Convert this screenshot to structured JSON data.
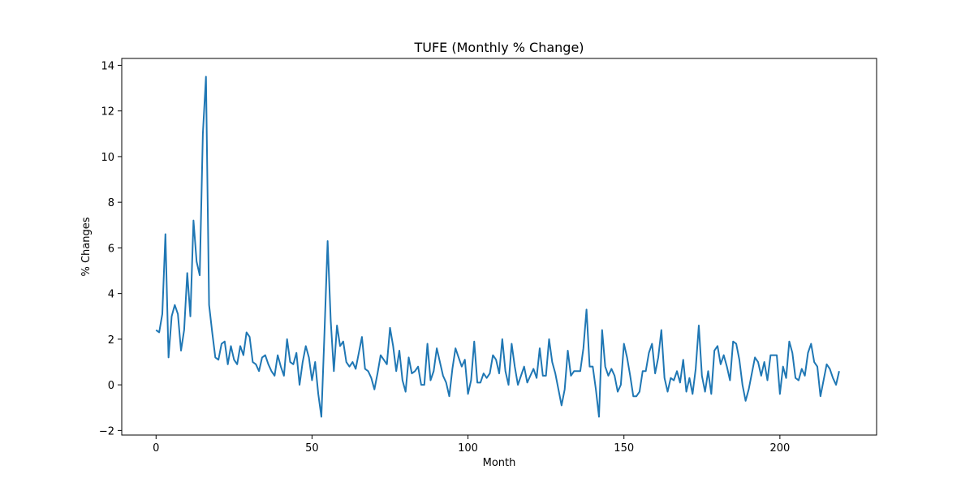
{
  "chart_data": {
    "type": "line",
    "title": "TUFE (Monthly % Change)",
    "xlabel": "Month",
    "ylabel": "% Changes",
    "xlim": [
      -11,
      231
    ],
    "ylim": [
      -2.2,
      14.3
    ],
    "xticks": [
      0,
      50,
      100,
      150,
      200
    ],
    "yticks": [
      -2,
      0,
      2,
      4,
      6,
      8,
      10,
      12,
      14
    ],
    "grid": false,
    "legend": "none",
    "series": [
      {
        "color": "#1f77b4",
        "values": [
          2.4,
          2.3,
          3.1,
          6.6,
          1.2,
          3.0,
          3.5,
          3.1,
          1.5,
          2.4,
          4.9,
          3.0,
          7.2,
          5.4,
          4.8,
          11.0,
          13.5,
          3.5,
          2.3,
          1.2,
          1.1,
          1.8,
          1.9,
          0.9,
          1.7,
          1.1,
          0.9,
          1.7,
          1.3,
          2.3,
          2.1,
          1.0,
          0.9,
          0.6,
          1.2,
          1.3,
          0.9,
          0.6,
          0.4,
          1.3,
          0.8,
          0.4,
          2.0,
          1.0,
          0.9,
          1.4,
          0.0,
          1.0,
          1.7,
          1.2,
          0.2,
          1.0,
          -0.4,
          -1.4,
          2.3,
          6.3,
          2.8,
          0.6,
          2.6,
          1.7,
          1.9,
          1.0,
          0.8,
          1.0,
          0.7,
          1.4,
          2.1,
          0.7,
          0.6,
          0.3,
          -0.2,
          0.5,
          1.3,
          1.1,
          0.9,
          2.5,
          1.7,
          0.6,
          1.5,
          0.2,
          -0.3,
          1.2,
          0.5,
          0.6,
          0.8,
          0.0,
          0.0,
          1.8,
          0.2,
          0.6,
          1.6,
          1.0,
          0.4,
          0.1,
          -0.5,
          0.7,
          1.6,
          1.2,
          0.8,
          1.1,
          -0.4,
          0.2,
          1.9,
          0.1,
          0.1,
          0.5,
          0.3,
          0.5,
          1.3,
          1.1,
          0.5,
          2.0,
          0.6,
          0.0,
          1.8,
          0.8,
          0.0,
          0.4,
          0.8,
          0.1,
          0.4,
          0.7,
          0.3,
          1.6,
          0.4,
          0.4,
          2.0,
          1.0,
          0.5,
          -0.2,
          -0.9,
          -0.2,
          1.5,
          0.4,
          0.6,
          0.6,
          0.6,
          1.6,
          3.3,
          0.8,
          0.8,
          -0.2,
          -1.4,
          2.4,
          0.8,
          0.4,
          0.7,
          0.4,
          -0.3,
          0.0,
          1.8,
          1.2,
          0.4,
          -0.5,
          -0.5,
          -0.3,
          0.6,
          0.6,
          1.4,
          1.8,
          0.5,
          1.2,
          2.4,
          0.3,
          -0.3,
          0.3,
          0.2,
          0.6,
          0.1,
          1.1,
          -0.3,
          0.3,
          -0.4,
          0.7,
          2.6,
          0.4,
          -0.3,
          0.6,
          -0.4,
          1.5,
          1.7,
          0.9,
          1.3,
          0.8,
          0.2,
          1.9,
          1.8,
          1.1,
          0.0,
          -0.7,
          -0.2,
          0.5,
          1.2,
          1.0,
          0.4,
          1.0,
          0.2,
          1.3,
          1.3,
          1.3,
          -0.4,
          0.8,
          0.3,
          1.9,
          1.4,
          0.3,
          0.2,
          0.7,
          0.4,
          1.4,
          1.8,
          1.0,
          0.8,
          -0.5,
          0.2,
          0.9,
          0.7,
          0.3,
          0.0,
          0.6
        ]
      }
    ]
  }
}
